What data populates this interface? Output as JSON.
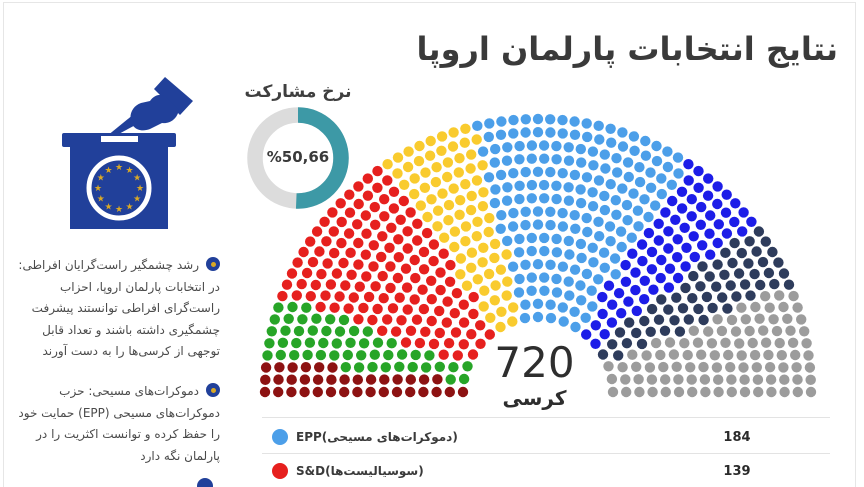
{
  "page": {
    "title": "نتایج انتخابات پارلمان اروپا"
  },
  "participation": {
    "label": "نرخ مشارکت",
    "value": "%50,66",
    "percent": 50.66,
    "fill_color": "#3D99A6",
    "track_color": "#DCDCDC"
  },
  "ballot_icon": {
    "name": "eu-ballot-box",
    "color": "#21409A",
    "star_color": "#D9A826",
    "star_count": 12
  },
  "bullets": {
    "items": [
      {
        "text": "رشد چشمگیر راست‌گرایان افراطی: در انتخابات پارلمان اروپا، احزاب راست‌گرای افراطی توانستند پیشرفت چشمگیری داشته باشند و تعداد قابل توجهی از کرسی‌ها را به دست آورند"
      },
      {
        "text": "دموکرات‌های مسیحی: حزب دموکرات‌های مسیحی (EPP) حمایت خود را حفظ کرده و توانست اکثریت را در پارلمان نگه دارد"
      }
    ]
  },
  "hemicycle": {
    "total": "720",
    "total_label": "کرسی"
  },
  "legend": {
    "rows": [
      {
        "label": "EPP(دموکرات‌های مسیحی)",
        "value": "184",
        "color": "#4C9FE9"
      },
      {
        "label": "S&D(سوسیالیست‌ها)",
        "value": "139",
        "color": "#E6201E"
      }
    ]
  },
  "chart_data": [
    {
      "type": "pie",
      "subtype": "donut",
      "title": "نرخ مشارکت",
      "center_label": "%50,66",
      "values": [
        50.66,
        49.34
      ],
      "colors": [
        "#3D99A6",
        "#DCDCDC"
      ],
      "start": "top",
      "direction": "clockwise"
    },
    {
      "type": "parliament",
      "total_seats": 720,
      "center_label": "720 کرسی",
      "segments": [
        {
          "color": "#8D1212",
          "seats": 36
        },
        {
          "color": "#27A527",
          "seats": 52
        },
        {
          "color": "#E6201E",
          "seats": 139,
          "label": "S&D(سوسیالیست‌ها)",
          "value_shown": "139"
        },
        {
          "color": "#F9CB2E",
          "seats": 80
        },
        {
          "color": "#4C9FE9",
          "seats": 184,
          "label": "EPP(دموکرات‌های مسیحی)",
          "value_shown": "184"
        },
        {
          "color": "#1D1DE8",
          "seats": 73
        },
        {
          "color": "#2E3C5C",
          "seats": 58
        },
        {
          "color": "#9C9C9C",
          "seats": 98
        }
      ]
    }
  ]
}
